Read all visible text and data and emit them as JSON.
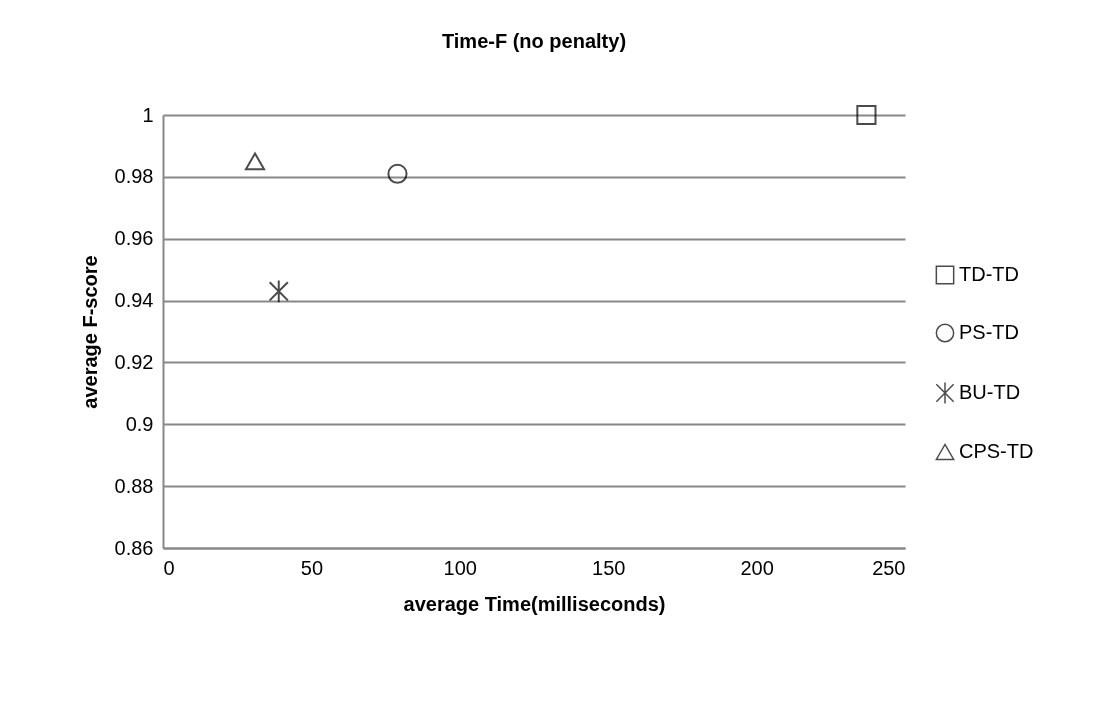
{
  "chart_data": {
    "type": "scatter",
    "title": "Time-F (no penalty)",
    "xlabel": "average Time(milliseconds)",
    "ylabel": "average F-score",
    "xlim": [
      0,
      250
    ],
    "xticks": [
      0,
      50,
      100,
      150,
      200,
      250
    ],
    "ylim": [
      0.86,
      1
    ],
    "yticks": [
      0.86,
      0.88,
      0.9,
      0.92,
      0.94,
      0.96,
      0.98,
      1
    ],
    "grid": "y",
    "legend": "right",
    "series": [
      {
        "name": "TD-TD",
        "color": "#000000",
        "marker": "square",
        "x": [
          237
        ],
        "values": [
          1
        ]
      },
      {
        "name": "PS-TD",
        "color": "#000000",
        "marker": "circle",
        "x": [
          79
        ],
        "values": [
          0.981
        ]
      },
      {
        "name": "BU-TD",
        "color": "#000000",
        "marker": "cross",
        "x": [
          39
        ],
        "values": [
          0.943
        ]
      },
      {
        "name": "CPS-TD",
        "color": "#000000",
        "marker": "triangle",
        "x": [
          31
        ],
        "values": [
          0.985
        ]
      }
    ]
  }
}
